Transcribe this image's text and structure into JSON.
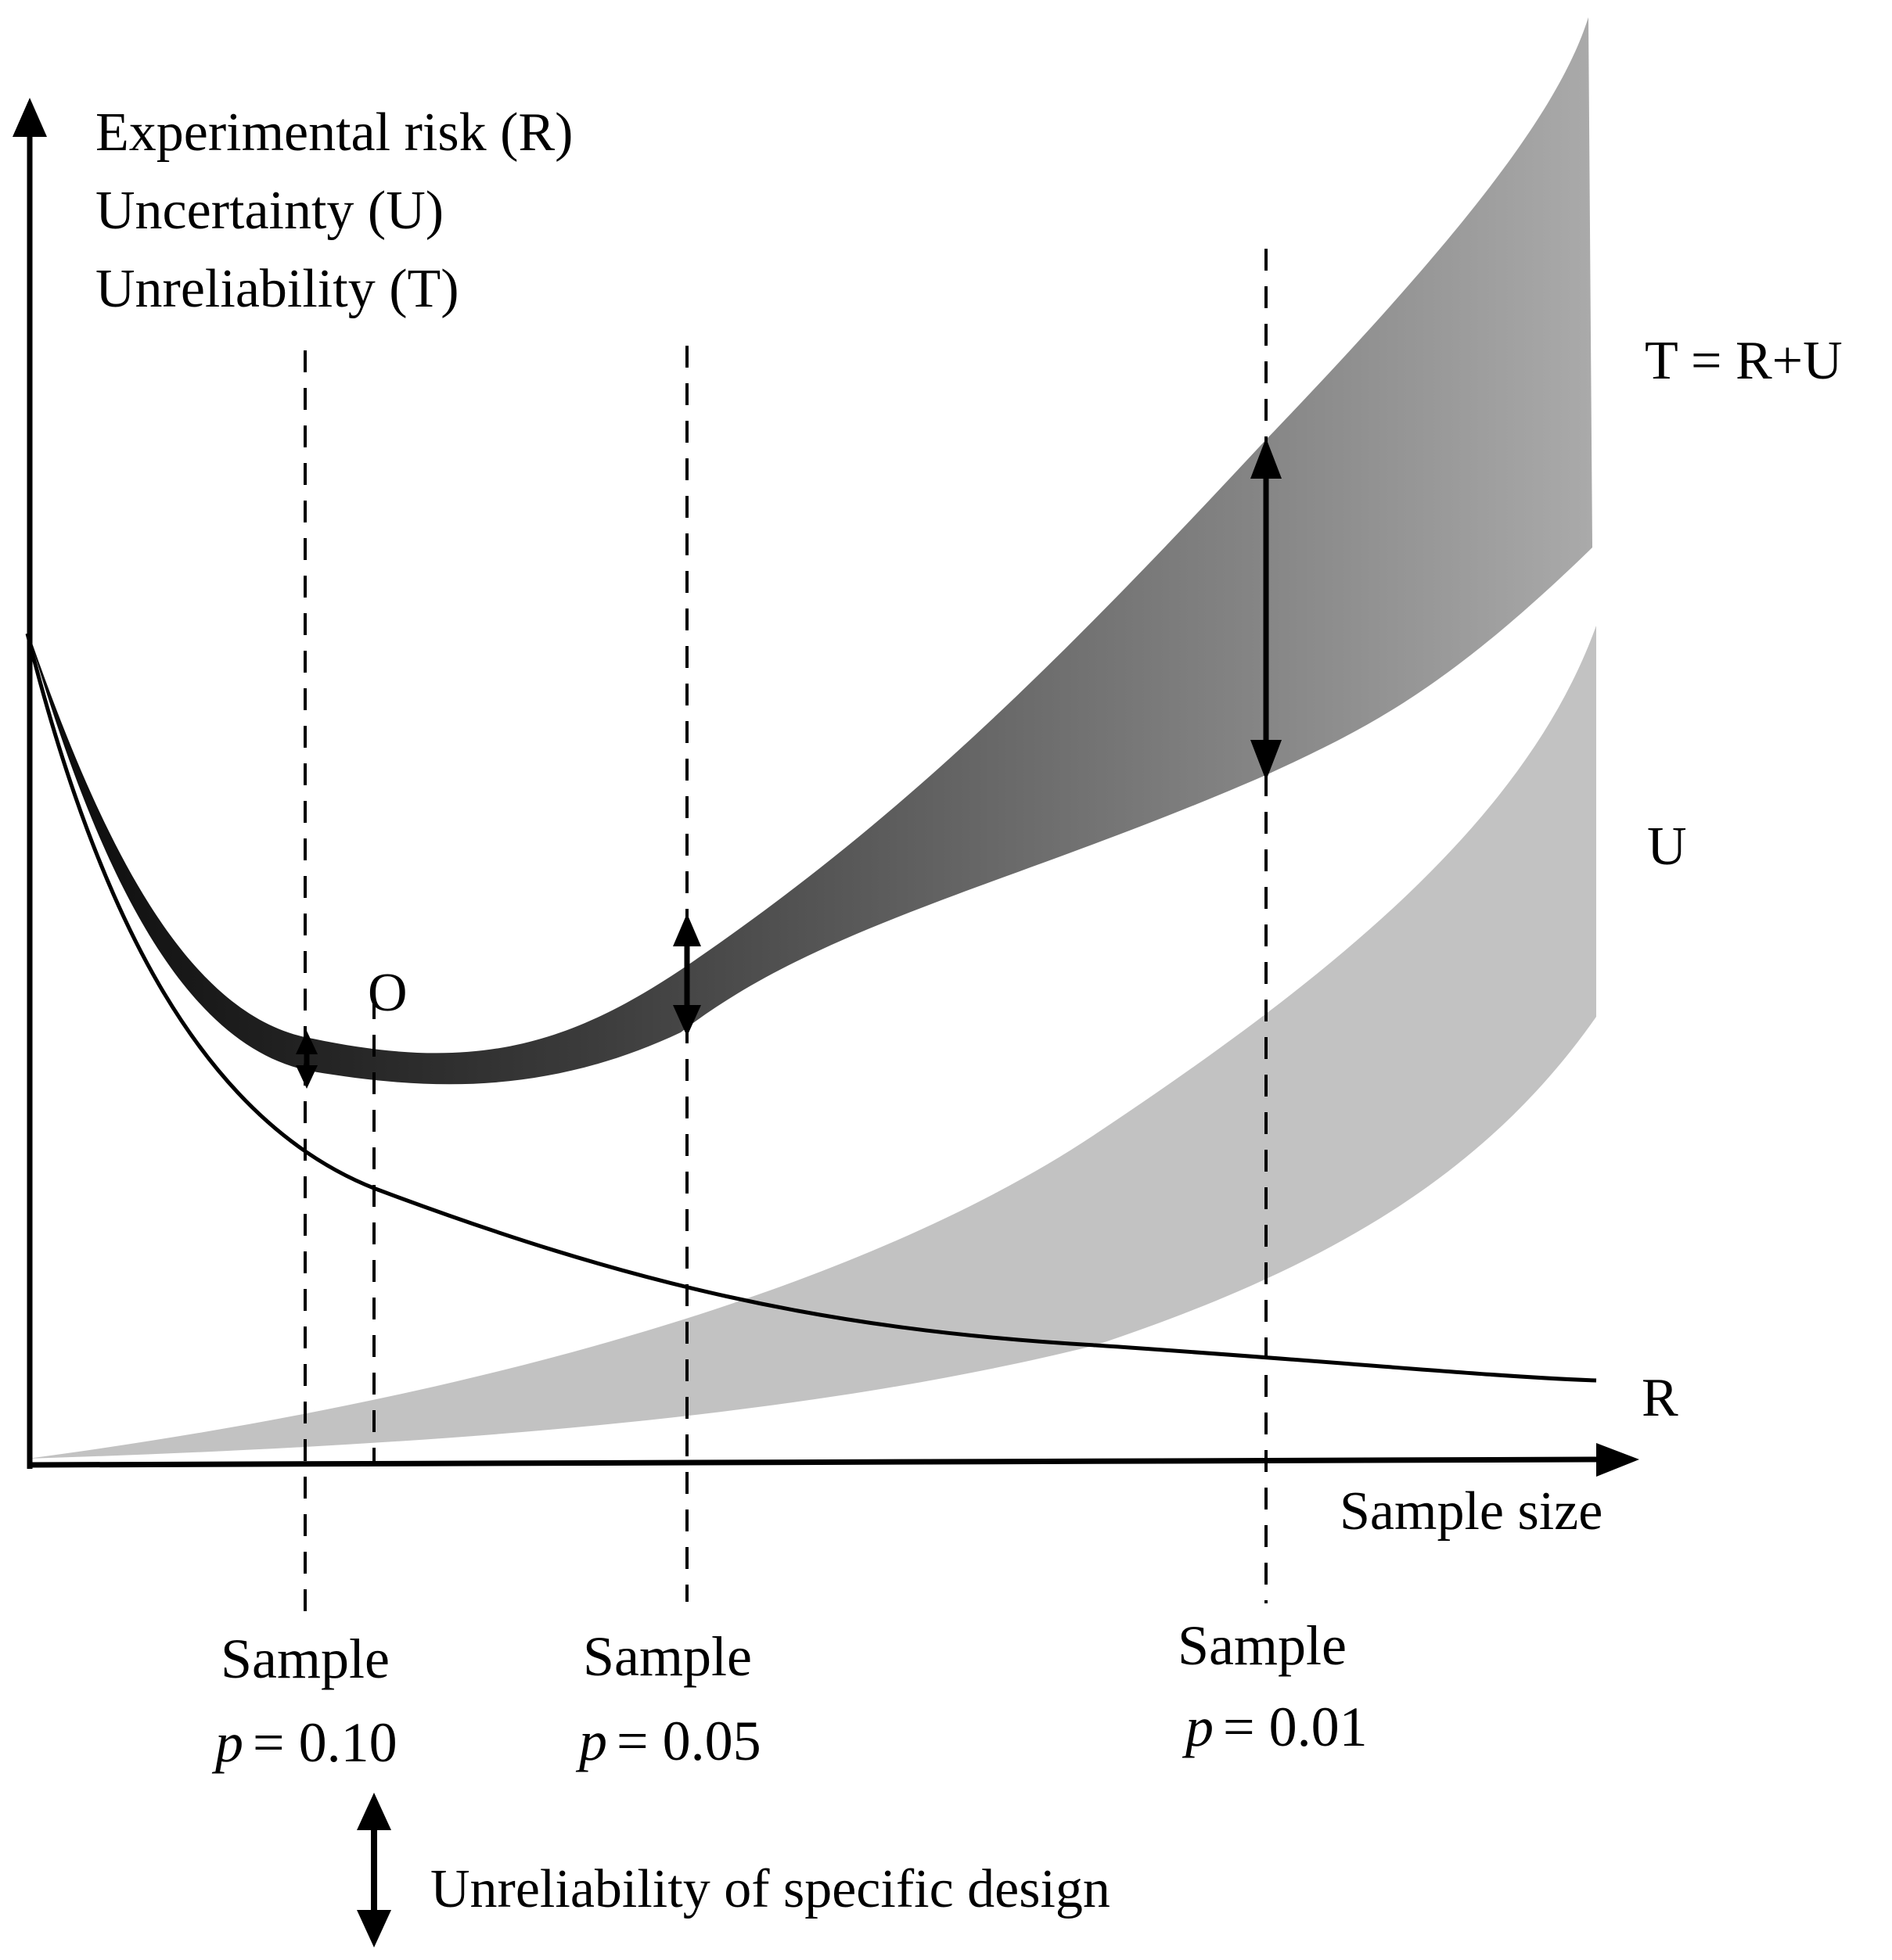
{
  "figure": {
    "y_axis_labels": [
      "Experimental risk (R)",
      "Uncertainty (U)",
      "Unreliability (T)"
    ],
    "x_axis_label": "Sample size",
    "curve_labels": {
      "total": "T = R+U",
      "uncertainty": "U",
      "risk": "R"
    },
    "optimum_label": "O",
    "samples": [
      {
        "title": "Sample",
        "p_symbol": "p",
        "p_value": "= 0.10"
      },
      {
        "title": "Sample",
        "p_symbol": "p",
        "p_value": "= 0.05"
      },
      {
        "title": "Sample",
        "p_symbol": "p",
        "p_value": "= 0.01"
      }
    ],
    "legend": {
      "text": "Unreliability of specific design"
    },
    "colors": {
      "axis": "#000000",
      "t_band_dark": "#0a0a0a",
      "t_band_light": "#aaaaaa",
      "u_band": "#c2c2c2",
      "risk_curve": "#000000"
    }
  }
}
